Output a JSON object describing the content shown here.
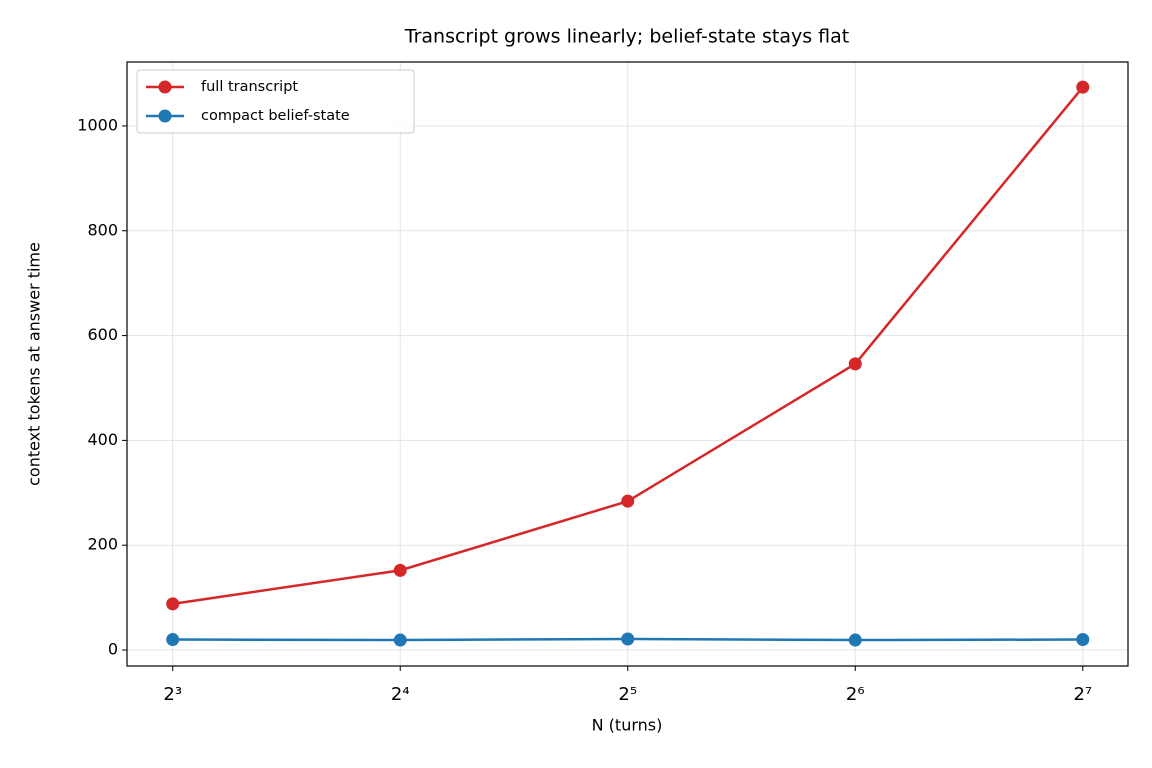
{
  "chart_data": {
    "type": "line",
    "title": "Transcript grows linearly; belief-state stays flat",
    "xlabel": "N  (turns)",
    "ylabel": "context tokens at answer time",
    "x": [
      8,
      16,
      32,
      64,
      128
    ],
    "xscale": "log2",
    "xlim": [
      6.96,
      146.9
    ],
    "xticks": [
      {
        "value": 8,
        "label": "2³"
      },
      {
        "value": 16,
        "label": "2⁴"
      },
      {
        "value": 32,
        "label": "2⁵"
      },
      {
        "value": 64,
        "label": "2⁶"
      },
      {
        "value": 128,
        "label": "2⁷"
      }
    ],
    "ylim": [
      -30.5,
      1122
    ],
    "yticks": [
      0,
      200,
      400,
      600,
      800,
      1000
    ],
    "grid": true,
    "legend": "upper left",
    "series": [
      {
        "name": "full transcript",
        "color": "#d62728",
        "values": [
          88,
          152,
          284,
          546,
          1074
        ]
      },
      {
        "name": "compact belief-state",
        "color": "#1f77b4",
        "values": [
          20,
          19,
          21,
          19,
          20
        ]
      }
    ]
  }
}
